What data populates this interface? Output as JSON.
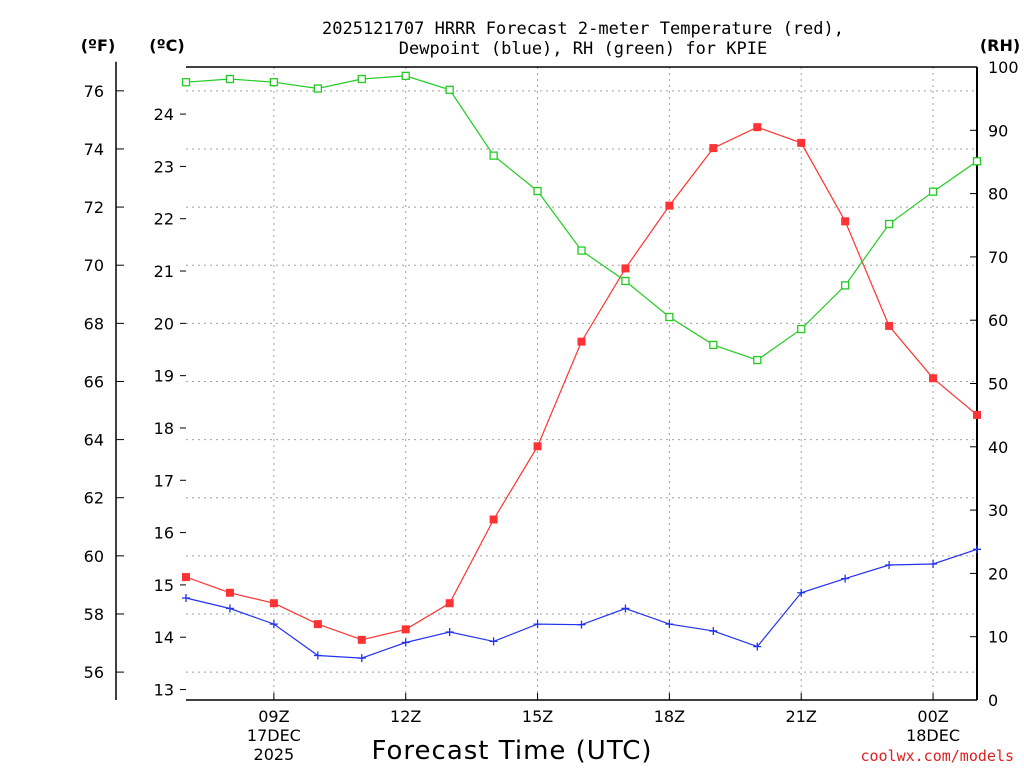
{
  "chart_data": {
    "type": "line",
    "title_line1": "2025121707 HRRR Forecast 2-meter Temperature (red),",
    "title_line2": "Dewpoint (blue), RH (green) for KPIE",
    "xlabel": "Forecast Time (UTC)",
    "credit": "coolwx.com/models",
    "units": {
      "fahrenheit": "(ºF)",
      "celsius": "(ºC)",
      "rh": "(RH)"
    },
    "x_hours": [
      7,
      8,
      9,
      10,
      11,
      12,
      13,
      14,
      15,
      16,
      17,
      18,
      19,
      20,
      21,
      22,
      23,
      24,
      25
    ],
    "x_ticks": [
      {
        "hour": 9,
        "label": "09Z",
        "date": "17DEC",
        "year": "2025"
      },
      {
        "hour": 12,
        "label": "12Z"
      },
      {
        "hour": 15,
        "label": "15Z"
      },
      {
        "hour": 18,
        "label": "18Z"
      },
      {
        "hour": 21,
        "label": "21Z"
      },
      {
        "hour": 24,
        "label": "00Z",
        "date": "18DEC"
      }
    ],
    "xlim": [
      7,
      25
    ],
    "celsius_axis": {
      "ylim": [
        12.8,
        24.9
      ],
      "ticks": [
        13,
        14,
        15,
        16,
        17,
        18,
        19,
        20,
        21,
        22,
        23,
        24
      ]
    },
    "fahrenheit_axis": {
      "ticks": [
        56,
        58,
        60,
        62,
        64,
        66,
        68,
        70,
        72,
        74,
        76
      ]
    },
    "rh_axis": {
      "ylim": [
        0,
        100
      ],
      "ticks": [
        0,
        10,
        20,
        30,
        40,
        50,
        60,
        70,
        80,
        90,
        100
      ]
    },
    "series": [
      {
        "name": "Temperature",
        "color": "#ff3333",
        "marker": "filled-square",
        "axis": "celsius",
        "values": [
          15.15,
          14.85,
          14.65,
          14.25,
          13.95,
          14.15,
          14.65,
          16.25,
          17.65,
          19.65,
          21.05,
          22.25,
          23.35,
          23.75,
          23.45,
          21.95,
          19.95,
          18.95,
          18.25
        ]
      },
      {
        "name": "Dewpoint",
        "color": "#2233ee",
        "marker": "plus",
        "axis": "celsius",
        "values": [
          14.75,
          14.55,
          14.25,
          13.65,
          13.6,
          13.9,
          14.1,
          13.92,
          14.25,
          14.24,
          14.55,
          14.25,
          14.12,
          13.82,
          14.85,
          15.12,
          15.38,
          15.4,
          15.68
        ]
      },
      {
        "name": "RH",
        "color": "#22cc22",
        "marker": "open-square",
        "axis": "rh",
        "values": [
          97.6,
          98.1,
          97.6,
          96.6,
          98.1,
          98.6,
          96.4,
          86.0,
          80.4,
          71.0,
          66.2,
          60.5,
          56.1,
          53.7,
          58.6,
          65.5,
          75.2,
          80.3,
          85.1
        ]
      }
    ]
  }
}
